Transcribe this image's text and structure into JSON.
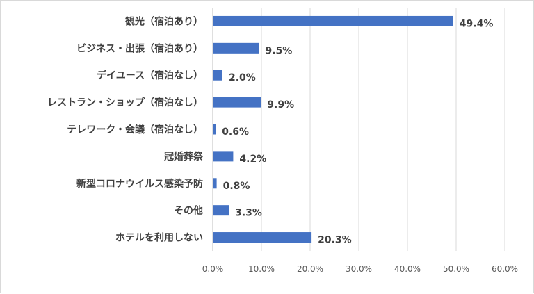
{
  "chart_data": {
    "type": "bar",
    "orientation": "horizontal",
    "categories": [
      "観光（宿泊あり）",
      "ビジネス・出張（宿泊あり）",
      "デイユース（宿泊なし）",
      "レストラン・ショップ（宿泊なし）",
      "テレワーク・会議（宿泊なし）",
      "冠婚葬祭",
      "新型コロナウイルス感染予防",
      "その他",
      "ホテルを利用しない"
    ],
    "values": [
      49.4,
      9.5,
      2.0,
      9.9,
      0.6,
      4.2,
      0.8,
      3.3,
      20.3
    ],
    "value_labels": [
      "49.4%",
      "9.5%",
      "2.0%",
      "9.9%",
      "0.6%",
      "4.2%",
      "0.8%",
      "3.3%",
      "20.3%"
    ],
    "xlim": [
      0,
      60
    ],
    "x_ticks": [
      0,
      10,
      20,
      30,
      40,
      50,
      60
    ],
    "x_tick_labels": [
      "0.0%",
      "10.0%",
      "20.0%",
      "30.0%",
      "40.0%",
      "50.0%",
      "60.0%"
    ],
    "bar_color": "#4472c4",
    "grid": true,
    "title": "",
    "xlabel": "",
    "ylabel": ""
  }
}
